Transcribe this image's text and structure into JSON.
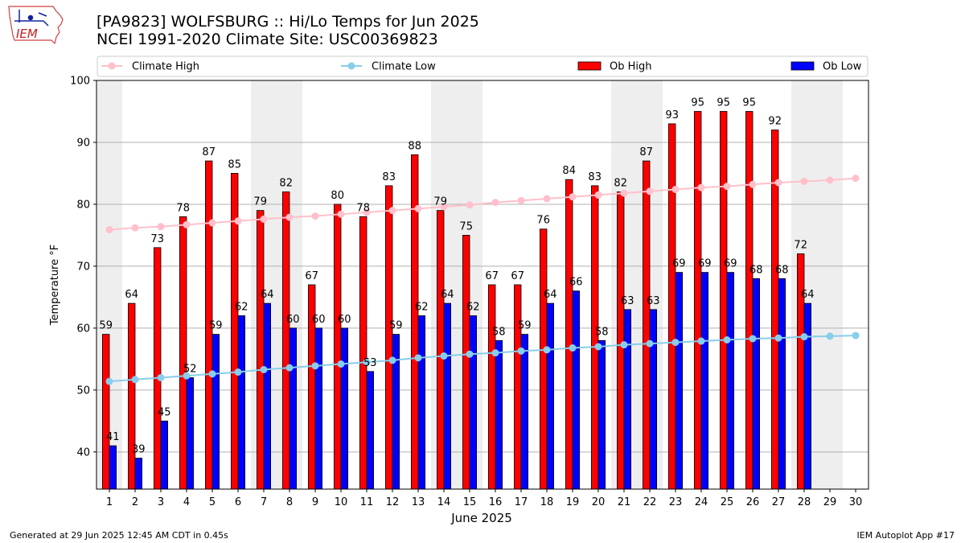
{
  "header": {
    "title_line1": "[PA9823] WOLFSBURG :: Hi/Lo Temps for Jun 2025",
    "title_line2": "NCEI 1991-2020 Climate Site: USC00369823",
    "logo_text": "IEM"
  },
  "footer": {
    "generated": "Generated at 29 Jun 2025 12:45 AM CDT in 0.45s",
    "app": "IEM Autoplot App #17"
  },
  "colors": {
    "ob_high": "#ff0000",
    "ob_low": "#0000ff",
    "climate_high": "#ffc0cb",
    "climate_low": "#87ceeb",
    "weekend_shade": "#eeeeee",
    "grid": "#b0b0b0"
  },
  "chart_data": {
    "type": "bar",
    "xlabel": "June 2025",
    "ylabel": "Temperature °F",
    "ylim": [
      34,
      100
    ],
    "xlim": [
      0.5,
      30.5
    ],
    "yticks": [
      40,
      50,
      60,
      70,
      80,
      90,
      100
    ],
    "categories": [
      "1",
      "2",
      "3",
      "4",
      "5",
      "6",
      "7",
      "8",
      "9",
      "10",
      "11",
      "12",
      "13",
      "14",
      "15",
      "16",
      "17",
      "18",
      "19",
      "20",
      "21",
      "22",
      "23",
      "24",
      "25",
      "26",
      "27",
      "28",
      "29",
      "30"
    ],
    "grid": "horizontal",
    "legend_placement": "top",
    "shaded_weekend_days": [
      1,
      7,
      8,
      14,
      15,
      21,
      22,
      28,
      29
    ],
    "series": [
      {
        "name": "Climate High",
        "kind": "line",
        "values": [
          75.9,
          76.2,
          76.4,
          76.7,
          77.0,
          77.3,
          77.6,
          77.9,
          78.1,
          78.4,
          78.7,
          79.0,
          79.3,
          79.6,
          79.9,
          80.3,
          80.6,
          80.9,
          81.2,
          81.5,
          81.8,
          82.1,
          82.4,
          82.7,
          82.9,
          83.2,
          83.5,
          83.7,
          83.9,
          84.2
        ]
      },
      {
        "name": "Climate Low",
        "kind": "line",
        "values": [
          51.4,
          51.7,
          52.0,
          52.3,
          52.6,
          52.9,
          53.3,
          53.6,
          53.9,
          54.2,
          54.5,
          54.8,
          55.2,
          55.5,
          55.8,
          56.0,
          56.3,
          56.5,
          56.8,
          57.0,
          57.3,
          57.5,
          57.7,
          57.9,
          58.1,
          58.3,
          58.4,
          58.6,
          58.7,
          58.8
        ]
      },
      {
        "name": "Ob High",
        "kind": "bar",
        "values": [
          59,
          64,
          73,
          78,
          87,
          85,
          79,
          82,
          67,
          80,
          78,
          83,
          88,
          79,
          75,
          67,
          67,
          76,
          84,
          83,
          82,
          87,
          93,
          95,
          95,
          95,
          92,
          72,
          null,
          null
        ]
      },
      {
        "name": "Ob Low",
        "kind": "bar",
        "values": [
          41,
          39,
          45,
          52,
          59,
          62,
          64,
          60,
          60,
          60,
          53,
          59,
          62,
          64,
          62,
          58,
          59,
          64,
          66,
          58,
          63,
          63,
          69,
          69,
          69,
          68,
          68,
          64,
          null,
          null
        ]
      }
    ]
  }
}
